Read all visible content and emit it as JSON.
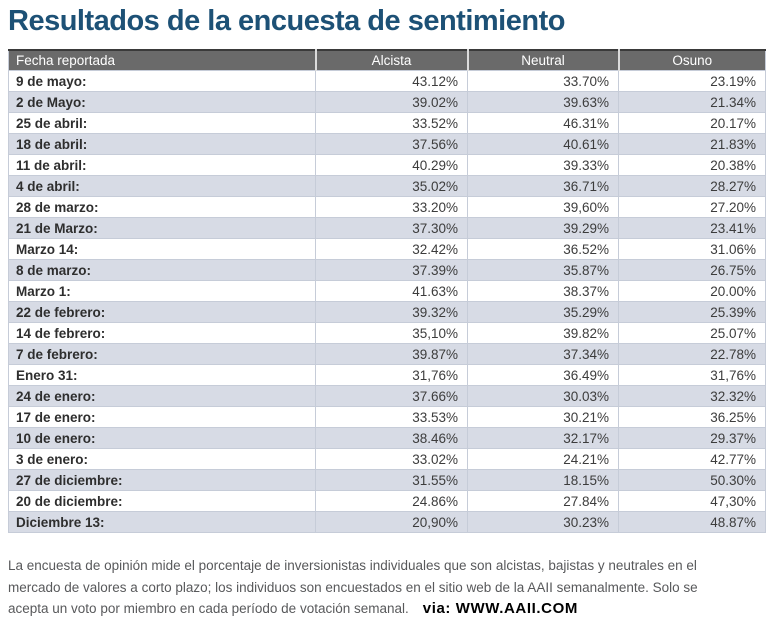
{
  "title": "Resultados de la encuesta de sentimiento",
  "table": {
    "columns": [
      "Fecha reportada",
      "Alcista",
      "Neutral",
      "Osuno"
    ],
    "rows": [
      {
        "date": "9 de mayo:",
        "alcista": "43.12%",
        "neutral": "33.70%",
        "osuno": "23.19%"
      },
      {
        "date": "2 de Mayo:",
        "alcista": "39.02%",
        "neutral": "39.63%",
        "osuno": "21.34%"
      },
      {
        "date": "25 de abril:",
        "alcista": "33.52%",
        "neutral": "46.31%",
        "osuno": "20.17%"
      },
      {
        "date": "18 de abril:",
        "alcista": "37.56%",
        "neutral": "40.61%",
        "osuno": "21.83%"
      },
      {
        "date": "11 de abril:",
        "alcista": "40.29%",
        "neutral": "39.33%",
        "osuno": "20.38%"
      },
      {
        "date": "4 de abril:",
        "alcista": "35.02%",
        "neutral": "36.71%",
        "osuno": "28.27%"
      },
      {
        "date": "28 de marzo:",
        "alcista": "33.20%",
        "neutral": "39,60%",
        "osuno": "27.20%"
      },
      {
        "date": "21 de Marzo:",
        "alcista": "37.30%",
        "neutral": "39.29%",
        "osuno": "23.41%"
      },
      {
        "date": "Marzo 14:",
        "alcista": "32.42%",
        "neutral": "36.52%",
        "osuno": "31.06%"
      },
      {
        "date": "8 de marzo:",
        "alcista": "37.39%",
        "neutral": "35.87%",
        "osuno": "26.75%"
      },
      {
        "date": "Marzo 1:",
        "alcista": "41.63%",
        "neutral": "38.37%",
        "osuno": "20.00%"
      },
      {
        "date": "22 de febrero:",
        "alcista": "39.32%",
        "neutral": "35.29%",
        "osuno": "25.39%"
      },
      {
        "date": "14 de febrero:",
        "alcista": "35,10%",
        "neutral": "39.82%",
        "osuno": "25.07%"
      },
      {
        "date": "7 de febrero:",
        "alcista": "39.87%",
        "neutral": "37.34%",
        "osuno": "22.78%"
      },
      {
        "date": "Enero 31:",
        "alcista": "31,76%",
        "neutral": "36.49%",
        "osuno": "31,76%"
      },
      {
        "date": "24 de enero:",
        "alcista": "37.66%",
        "neutral": "30.03%",
        "osuno": "32.32%"
      },
      {
        "date": "17 de enero:",
        "alcista": "33.53%",
        "neutral": "30.21%",
        "osuno": "36.25%"
      },
      {
        "date": "10 de enero:",
        "alcista": "38.46%",
        "neutral": "32.17%",
        "osuno": "29.37%"
      },
      {
        "date": "3 de enero:",
        "alcista": "33.02%",
        "neutral": "24.21%",
        "osuno": "42.77%"
      },
      {
        "date": "27 de diciembre:",
        "alcista": "31.55%",
        "neutral": "18.15%",
        "osuno": "50.30%"
      },
      {
        "date": "20 de diciembre:",
        "alcista": "24.86%",
        "neutral": "27.84%",
        "osuno": "47,30%"
      },
      {
        "date": "Diciembre 13:",
        "alcista": "20,90%",
        "neutral": "30.23%",
        "osuno": "48.87%"
      }
    ]
  },
  "footer": {
    "lines": [
      "La encuesta de opinión mide el porcentaje de inversionistas individuales que son alcistas, bajistas y neutrales en el",
      "mercado de valores a corto plazo; los individuos son encuestados en el sitio web de la AAII semanalmente. Solo se",
      "acepta un voto por miembro en cada período de votación semanal."
    ],
    "via_label": "via: WWW.AAII.COM"
  },
  "colors": {
    "title_blue": "#1d5176",
    "header_gray": "#6a6a6a",
    "alt_row": "#d7dbe5",
    "row_border": "#c6ccd8",
    "footer_text": "#58595b"
  }
}
